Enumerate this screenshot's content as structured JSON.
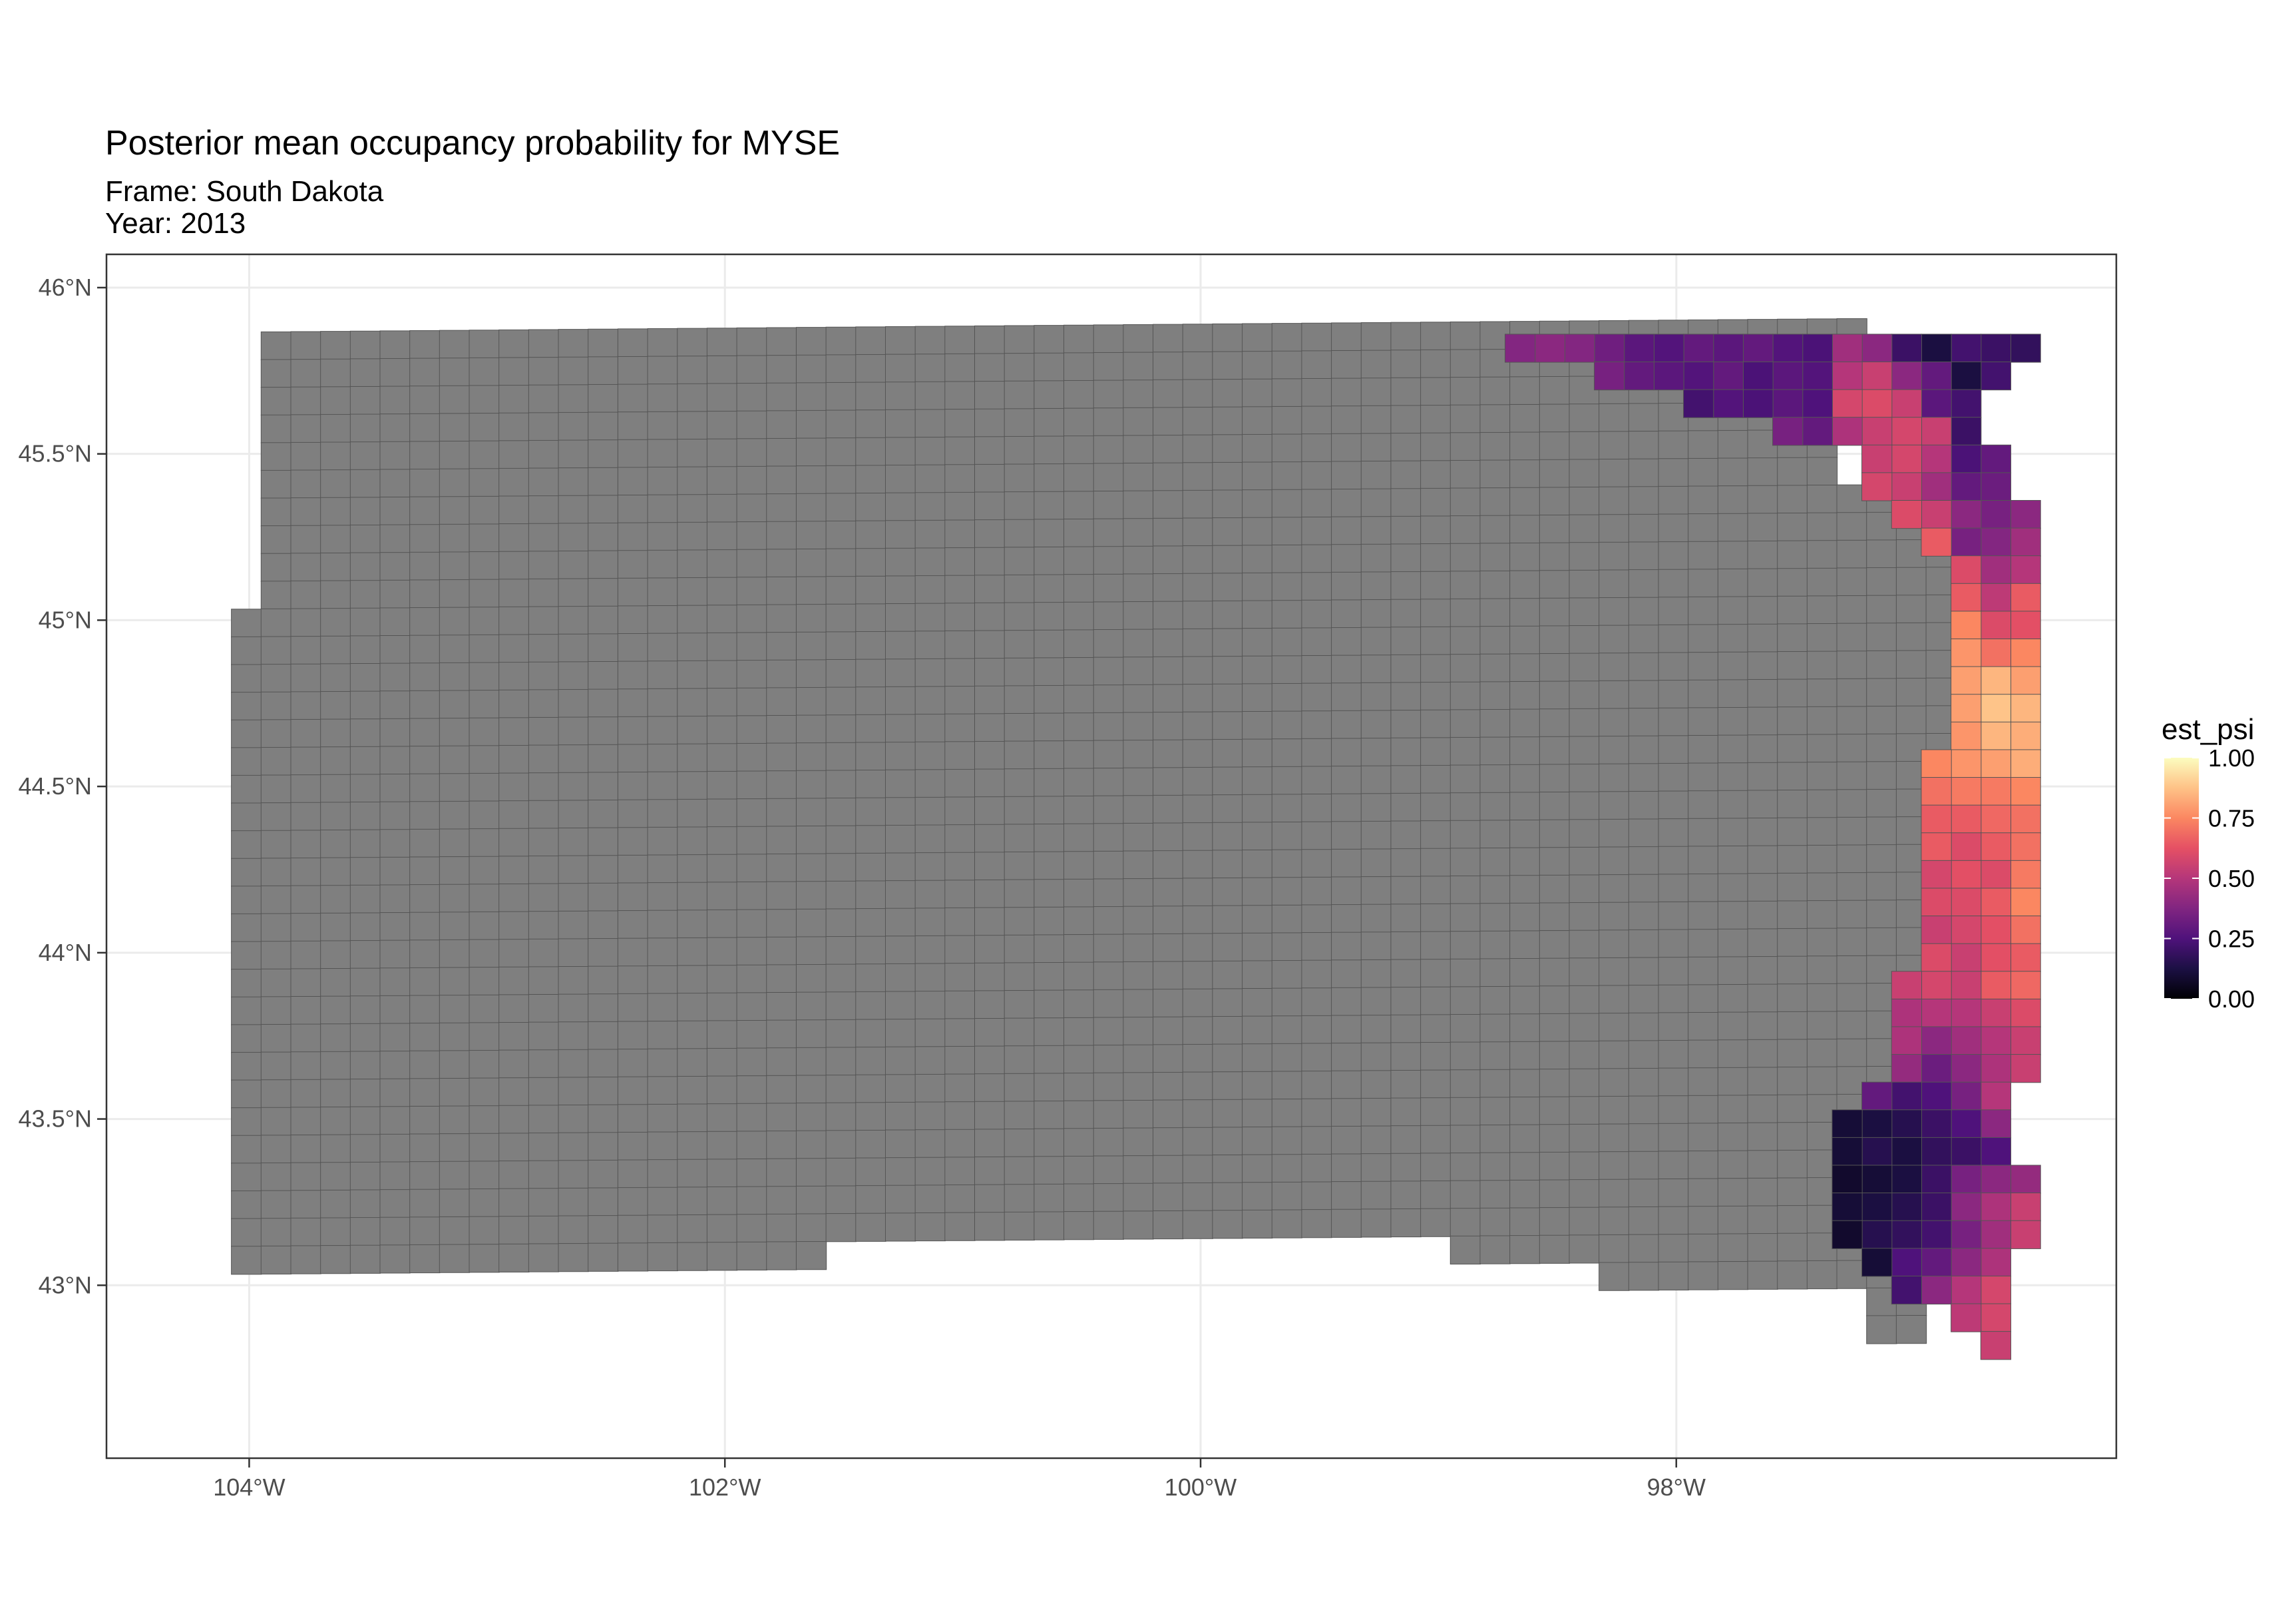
{
  "title": "Posterior mean occupancy probability for MYSE",
  "subtitle_lines": [
    "Frame: South Dakota",
    "Year: 2013"
  ],
  "colors": {
    "na_cell": "#7f7f7f",
    "cell_border": "#555555",
    "grid": "#ebebeb",
    "panel_border": "#333333",
    "tick_text": "#4d4d4d"
  },
  "legend": {
    "title": "est_psi",
    "ticks": [
      "0.00",
      "0.25",
      "0.50",
      "0.75",
      "1.00"
    ],
    "palette": "magma",
    "range": [
      0,
      1
    ]
  },
  "chart_data": {
    "type": "heatmap",
    "map_region": "South Dakota",
    "x_axis": {
      "ticks": [
        -104,
        -102,
        -100,
        -98
      ],
      "tick_labels": [
        "104°W",
        "102°W",
        "100°W",
        "98°W"
      ],
      "range": [
        -104.6,
        -96.15
      ]
    },
    "y_axis": {
      "ticks": [
        43,
        43.5,
        44,
        44.5,
        45,
        45.5,
        46
      ],
      "tick_labels": [
        "43°N",
        "43.5°N",
        "44°N",
        "44.5°N",
        "45°N",
        "45.5°N",
        "46°N"
      ],
      "range": [
        42.48,
        46.1
      ]
    },
    "grid": "major lines on",
    "value_field": "est_psi",
    "cell_size_deg": [
      0.125,
      0.0833
    ],
    "value_grid_note": "rows from north (top) to south; columns from east (right) to west; values in est_psi units; null = no estimate (grey)",
    "east_values": [
      [
        0.18,
        0.2,
        0.22,
        0.12,
        0.2,
        0.4,
        0.45,
        0.24,
        0.26,
        0.3,
        0.28,
        0.3,
        0.26,
        0.28,
        0.33,
        0.38,
        0.4,
        0.38
      ],
      [
        null,
        0.22,
        0.12,
        0.3,
        0.4,
        0.55,
        0.5,
        0.26,
        0.28,
        0.24,
        0.3,
        0.26,
        0.28,
        0.3,
        0.35
      ],
      [
        null,
        null,
        0.22,
        0.28,
        0.55,
        0.6,
        0.58,
        0.25,
        0.28,
        0.24,
        0.26,
        0.22
      ],
      [
        null,
        null,
        0.2,
        0.55,
        0.58,
        0.55,
        0.48,
        0.3,
        0.35
      ],
      [
        null,
        0.3,
        0.24,
        0.5,
        0.58,
        0.55
      ],
      [
        null,
        0.32,
        0.3,
        0.45,
        0.55,
        0.58
      ],
      [
        0.4,
        0.35,
        0.4,
        0.55,
        0.6
      ],
      [
        0.45,
        0.38,
        0.35,
        0.65
      ],
      [
        0.5,
        0.45,
        0.6
      ],
      [
        0.65,
        0.52,
        0.65
      ],
      [
        0.62,
        0.6,
        0.75
      ],
      [
        0.75,
        0.7,
        0.78
      ],
      [
        0.8,
        0.85,
        0.8
      ],
      [
        0.85,
        0.88,
        0.8
      ],
      [
        0.83,
        0.85,
        0.78
      ],
      [
        0.83,
        0.8,
        0.78,
        0.75
      ],
      [
        0.75,
        0.72,
        0.72,
        0.7
      ],
      [
        0.7,
        0.68,
        0.65,
        0.65
      ],
      [
        0.7,
        0.65,
        0.6,
        0.65
      ],
      [
        0.72,
        0.6,
        0.62,
        0.58
      ],
      [
        0.75,
        0.65,
        0.6,
        0.6
      ],
      [
        0.7,
        0.62,
        0.58,
        0.55
      ],
      [
        0.65,
        0.62,
        0.55,
        0.6
      ],
      [
        0.68,
        0.65,
        0.55,
        0.58,
        0.55
      ],
      [
        0.6,
        0.55,
        0.5,
        0.5,
        0.48
      ],
      [
        0.55,
        0.5,
        0.45,
        0.4,
        0.48
      ],
      [
        0.55,
        0.48,
        0.4,
        0.32,
        0.42
      ],
      [
        null,
        0.5,
        0.35,
        0.25,
        0.22,
        0.3
      ],
      [
        null,
        0.4,
        0.25,
        0.2,
        0.15,
        0.12,
        0.1
      ],
      [
        null,
        0.25,
        0.2,
        0.18,
        0.12,
        0.15,
        0.1
      ],
      [
        0.42,
        0.4,
        0.35,
        0.2,
        0.12,
        0.1,
        0.08
      ],
      [
        0.55,
        0.48,
        0.4,
        0.2,
        0.15,
        0.12,
        0.1
      ],
      [
        0.55,
        0.45,
        0.35,
        0.22,
        0.18,
        0.15,
        0.08
      ],
      [
        null,
        0.48,
        0.4,
        0.3,
        0.25,
        0.1
      ],
      [
        null,
        0.58,
        0.5,
        0.4,
        0.22
      ],
      [
        null,
        0.58,
        0.52
      ],
      [
        null,
        0.55
      ]
    ]
  }
}
